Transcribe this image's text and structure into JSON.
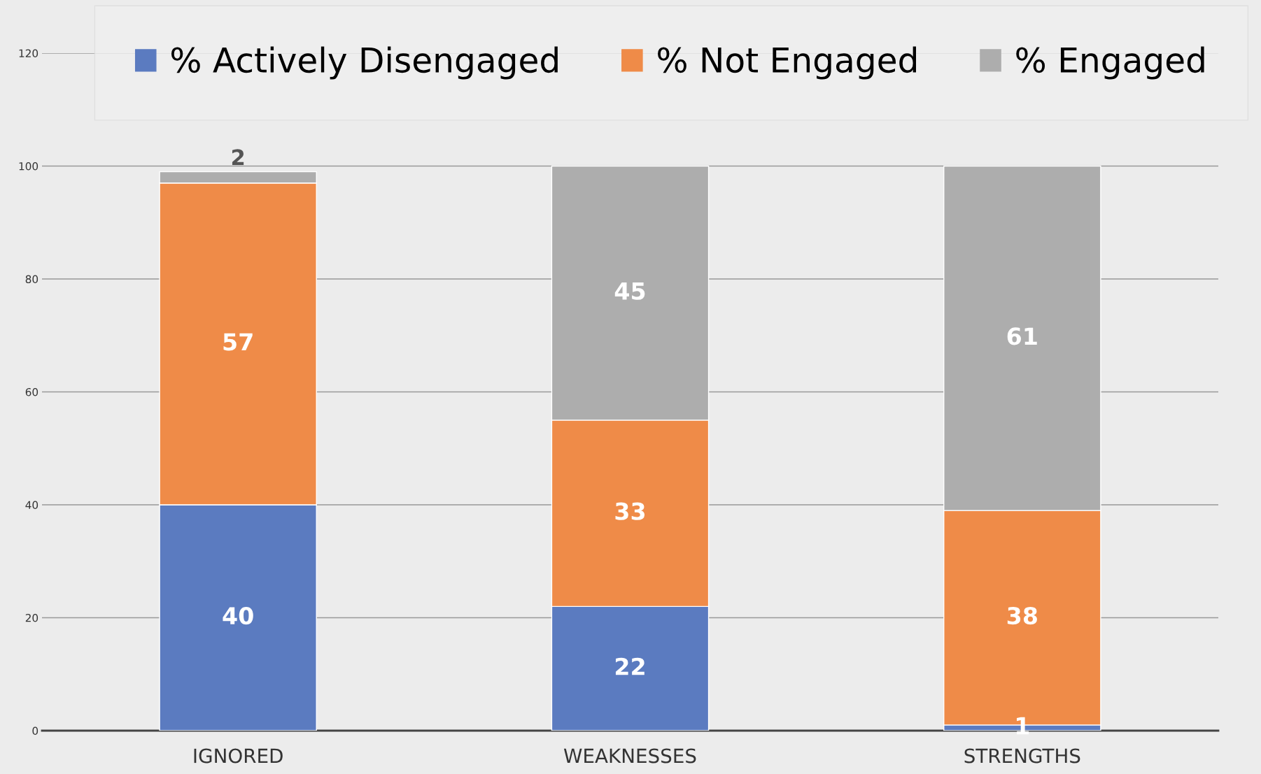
{
  "chart_data": {
    "type": "bar",
    "stacked": true,
    "categories": [
      "IGNORED",
      "WEAKNESSES",
      "STRENGTHS"
    ],
    "series": [
      {
        "name": "% Actively Disengaged",
        "color": "#5b7bc0",
        "values": [
          40,
          22,
          1
        ]
      },
      {
        "name": "% Not Engaged",
        "color": "#ef8b48",
        "values": [
          57,
          33,
          38
        ]
      },
      {
        "name": "% Engaged",
        "color": "#adadad",
        "values": [
          2,
          45,
          61
        ]
      }
    ],
    "ylim": [
      0,
      120
    ],
    "yticks": [
      0,
      20,
      40,
      60,
      80,
      100,
      120
    ],
    "grid": "y",
    "legend": "top",
    "data_labels": true
  }
}
